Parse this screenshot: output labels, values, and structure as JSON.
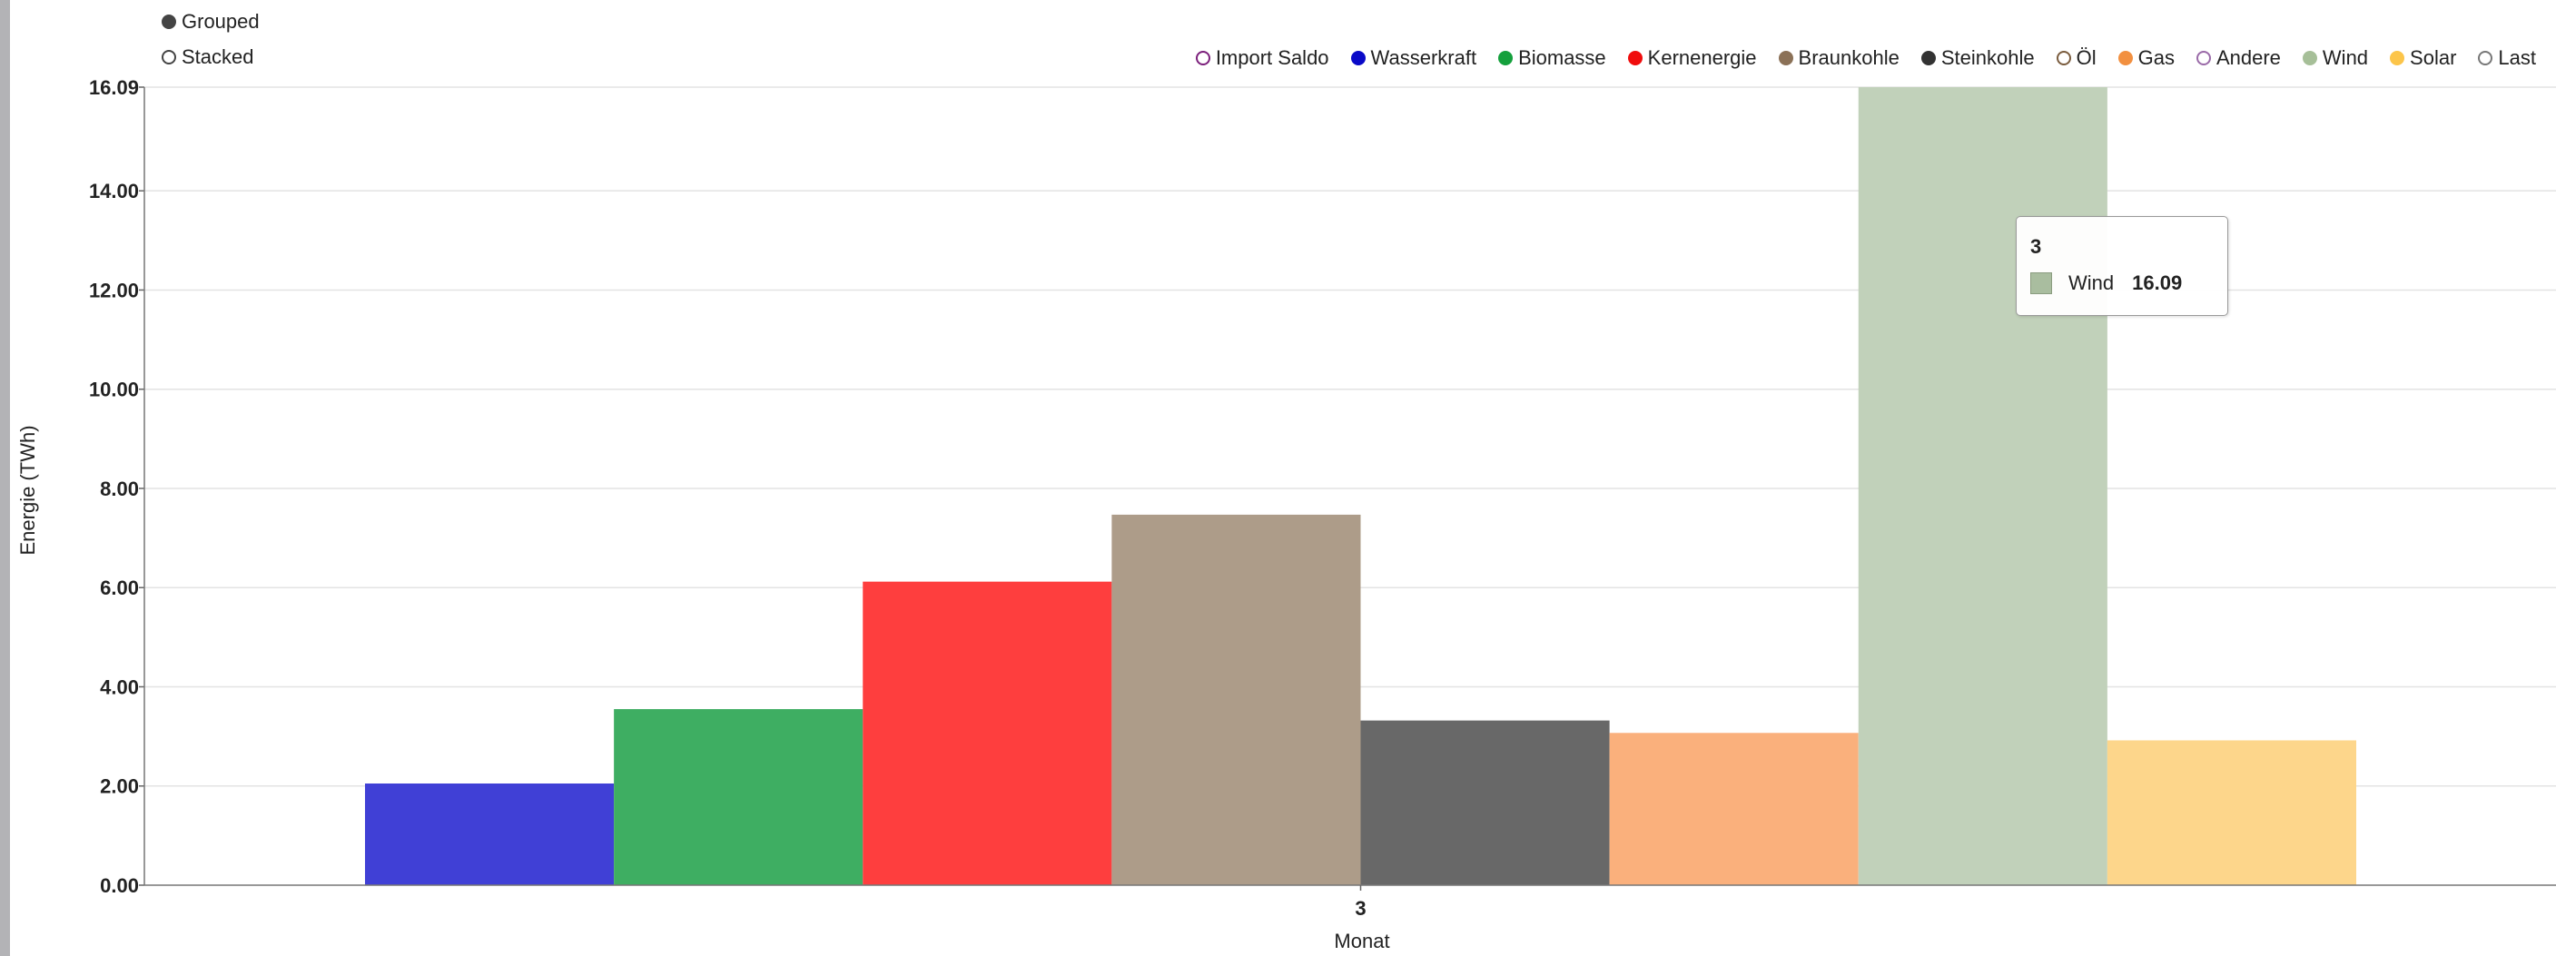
{
  "mode_toggle": {
    "items": [
      {
        "label": "Grouped",
        "selected": true
      },
      {
        "label": "Stacked",
        "selected": false
      }
    ]
  },
  "legend": {
    "items": [
      {
        "label": "Import Saldo",
        "color": "#7b1f7b",
        "filled": false
      },
      {
        "label": "Wasserkraft",
        "color": "#0a0ac8",
        "filled": true
      },
      {
        "label": "Biomasse",
        "color": "#14a03c",
        "filled": true
      },
      {
        "label": "Kernenergie",
        "color": "#f00d0d",
        "filled": true
      },
      {
        "label": "Braunkohle",
        "color": "#8b7157",
        "filled": true
      },
      {
        "label": "Steinkohle",
        "color": "#333333",
        "filled": true
      },
      {
        "label": "Öl",
        "color": "#7a5c3e",
        "filled": false
      },
      {
        "label": "Gas",
        "color": "#f29040",
        "filled": true
      },
      {
        "label": "Andere",
        "color": "#9a6aa8",
        "filled": false
      },
      {
        "label": "Wind",
        "color": "#a6bf98",
        "filled": true
      },
      {
        "label": "Solar",
        "color": "#fcc54a",
        "filled": true
      },
      {
        "label": "Last",
        "color": "#777777",
        "filled": false
      }
    ]
  },
  "chart_data": {
    "type": "bar",
    "categories": [
      "3"
    ],
    "xlabel": "Monat",
    "ylabel": "Energie (TWh)",
    "ylim": [
      0,
      16.09
    ],
    "yticks": [
      "0.00",
      "2.00",
      "4.00",
      "6.00",
      "8.00",
      "10.00",
      "12.00",
      "14.00",
      "16.09"
    ],
    "ytick_values": [
      0,
      2,
      4,
      6,
      8,
      10,
      12,
      14,
      16.09
    ],
    "grid": true,
    "legend_position": "top-right",
    "series": [
      {
        "name": "Wasserkraft",
        "values": [
          2.05
        ],
        "color": "#4040d6"
      },
      {
        "name": "Biomasse",
        "values": [
          3.55
        ],
        "color": "#3eae62"
      },
      {
        "name": "Kernenergie",
        "values": [
          6.12
        ],
        "color": "#fe3e3e"
      },
      {
        "name": "Braunkohle",
        "values": [
          7.47
        ],
        "color": "#ad9c89"
      },
      {
        "name": "Steinkohle",
        "values": [
          3.32
        ],
        "color": "#686868"
      },
      {
        "name": "Gas",
        "values": [
          3.07
        ],
        "color": "#fab07c"
      },
      {
        "name": "Wind",
        "values": [
          16.09
        ],
        "color": "#c1d1ba"
      },
      {
        "name": "Solar",
        "values": [
          2.92
        ],
        "color": "#fdd68b"
      }
    ]
  },
  "tooltip": {
    "title": "3",
    "series_name": "Wind",
    "value": "16.09",
    "swatch_color": "#a9bd9f"
  }
}
